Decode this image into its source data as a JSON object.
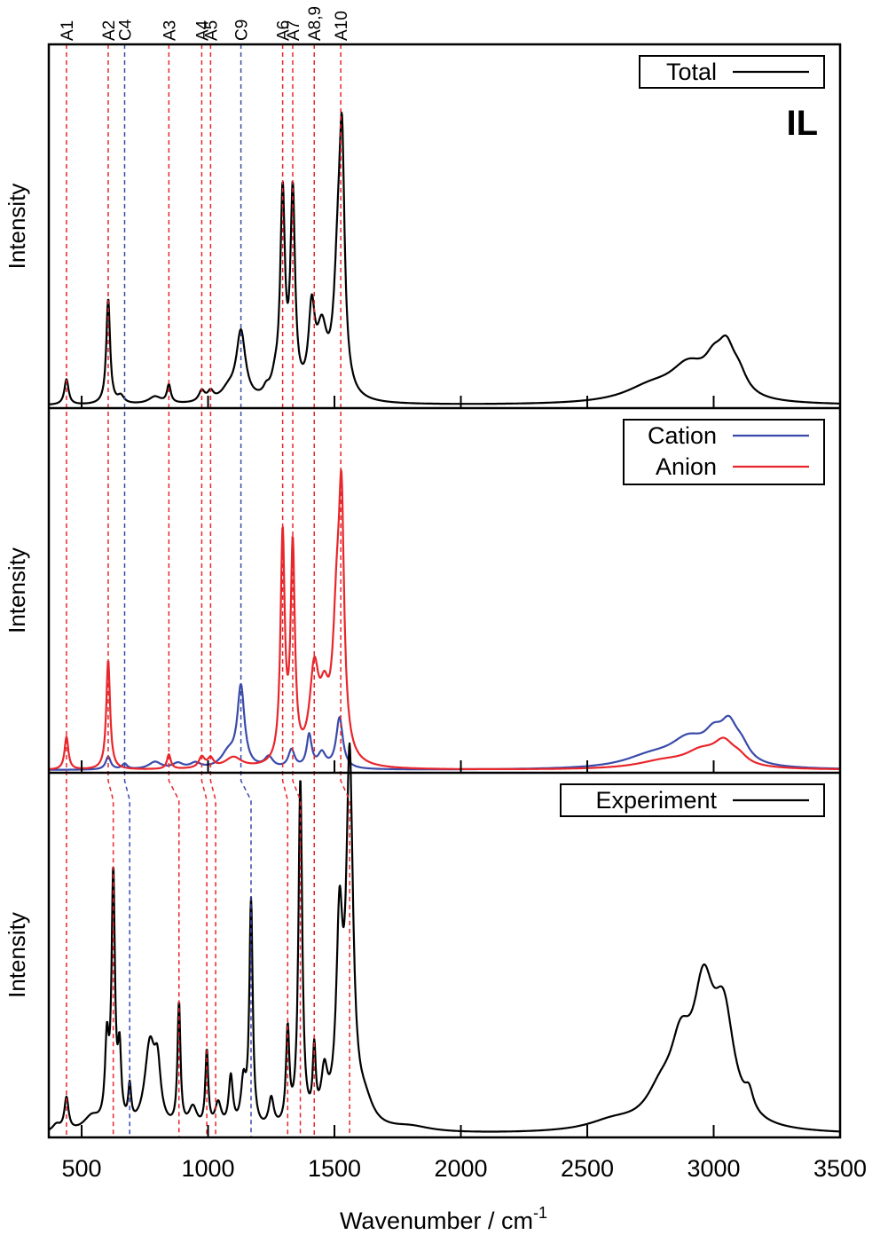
{
  "chart_data": {
    "type": "line",
    "xlabel": "Wavenumber / cm",
    "xlabel_sup": "-1",
    "xlim": [
      370,
      3500
    ],
    "xticks": [
      500,
      1000,
      1500,
      2000,
      2500,
      3000,
      3500
    ],
    "xtick_labels": [
      "500",
      "1000",
      "1500",
      "2000",
      "2500",
      "3000",
      "3500"
    ],
    "colors": {
      "total": "#000000",
      "cation": "#3a4aaa",
      "anion": "#e8262b",
      "experiment": "#000000"
    },
    "markers": [
      {
        "label": "A1",
        "x": 440,
        "color": "#e8262b",
        "x_exp": 440
      },
      {
        "label": "A2",
        "x": 605,
        "color": "#e8262b",
        "x_exp": 625
      },
      {
        "label": "C4",
        "x": 670,
        "color": "#3a4aaa",
        "x_exp": 690
      },
      {
        "label": "A3",
        "x": 845,
        "color": "#e8262b",
        "x_exp": 885
      },
      {
        "label": "A4",
        "x": 975,
        "color": "#e8262b",
        "x_exp": 995
      },
      {
        "label": "A5",
        "x": 1010,
        "color": "#e8262b",
        "x_exp": 1030
      },
      {
        "label": "C9",
        "x": 1130,
        "color": "#3a4aaa",
        "x_exp": 1170
      },
      {
        "label": "A6",
        "x": 1295,
        "color": "#e8262b",
        "x_exp": 1315
      },
      {
        "label": "A7",
        "x": 1335,
        "color": "#e8262b",
        "x_exp": 1365
      },
      {
        "label": "A8,9",
        "x": 1420,
        "color": "#e8262b",
        "x_exp": 1420
      },
      {
        "label": "A10",
        "x": 1525,
        "color": "#e8262b",
        "x_exp": 1560
      }
    ],
    "panels": [
      {
        "ylabel": "Intensity",
        "tag": "IL",
        "legend_position": "top-right",
        "series": [
          {
            "name": "Total",
            "color": "#000000",
            "peaks": [
              [
                440,
                10,
                0.07
              ],
              [
                605,
                9,
                0.29
              ],
              [
                655,
                15,
                0.02
              ],
              [
                790,
                30,
                0.02
              ],
              [
                845,
                9,
                0.05
              ],
              [
                975,
                14,
                0.03
              ],
              [
                1010,
                14,
                0.025
              ],
              [
                1080,
                35,
                0.03
              ],
              [
                1130,
                22,
                0.19
              ],
              [
                1230,
                14,
                0.02
              ],
              [
                1265,
                18,
                0.04
              ],
              [
                1295,
                11,
                0.55
              ],
              [
                1335,
                11,
                0.55
              ],
              [
                1410,
                15,
                0.22
              ],
              [
                1450,
                25,
                0.17
              ],
              [
                1515,
                20,
                0.35
              ],
              [
                1530,
                12,
                0.55
              ],
              [
                2750,
                130,
                0.04
              ],
              [
                2900,
                90,
                0.09
              ],
              [
                3000,
                45,
                0.07
              ],
              [
                3050,
                40,
                0.11
              ],
              [
                3100,
                40,
                0.05
              ]
            ]
          }
        ]
      },
      {
        "ylabel": "Intensity",
        "legend_position": "top-right",
        "series": [
          {
            "name": "Cation",
            "color": "#3a4aaa",
            "peaks": [
              [
                605,
                12,
                0.035
              ],
              [
                670,
                12,
                0.015
              ],
              [
                790,
                30,
                0.02
              ],
              [
                880,
                25,
                0.015
              ],
              [
                950,
                25,
                0.015
              ],
              [
                1080,
                35,
                0.04
              ],
              [
                1130,
                17,
                0.22
              ],
              [
                1240,
                20,
                0.03
              ],
              [
                1330,
                15,
                0.05
              ],
              [
                1400,
                12,
                0.09
              ],
              [
                1450,
                18,
                0.04
              ],
              [
                1520,
                16,
                0.14
              ],
              [
                2750,
                130,
                0.03
              ],
              [
                2900,
                90,
                0.07
              ],
              [
                3000,
                45,
                0.06
              ],
              [
                3060,
                40,
                0.09
              ],
              [
                3110,
                40,
                0.04
              ]
            ]
          },
          {
            "name": "Anion",
            "color": "#e8262b",
            "peaks": [
              [
                440,
                9,
                0.09
              ],
              [
                605,
                9,
                0.3
              ],
              [
                845,
                9,
                0.04
              ],
              [
                975,
                14,
                0.03
              ],
              [
                1010,
                14,
                0.025
              ],
              [
                1100,
                40,
                0.03
              ],
              [
                1295,
                10,
                0.62
              ],
              [
                1335,
                10,
                0.58
              ],
              [
                1420,
                22,
                0.24
              ],
              [
                1460,
                22,
                0.14
              ],
              [
                1510,
                20,
                0.38
              ],
              [
                1528,
                12,
                0.58
              ],
              [
                2800,
                130,
                0.02
              ],
              [
                2950,
                80,
                0.04
              ],
              [
                3040,
                50,
                0.06
              ],
              [
                3100,
                40,
                0.02
              ]
            ]
          }
        ]
      },
      {
        "ylabel": "Intensity",
        "legend_position": "top-right",
        "series": [
          {
            "name": "Experiment",
            "color": "#000000",
            "peaks": [
              [
                400,
                20,
                0.02
              ],
              [
                440,
                10,
                0.09
              ],
              [
                540,
                40,
                0.04
              ],
              [
                600,
                9,
                0.22
              ],
              [
                625,
                8,
                0.68
              ],
              [
                650,
                8,
                0.19
              ],
              [
                690,
                7,
                0.1
              ],
              [
                770,
                25,
                0.23
              ],
              [
                800,
                15,
                0.14
              ],
              [
                885,
                7,
                0.34
              ],
              [
                940,
                20,
                0.06
              ],
              [
                995,
                7,
                0.21
              ],
              [
                1040,
                15,
                0.07
              ],
              [
                1090,
                10,
                0.14
              ],
              [
                1140,
                12,
                0.12
              ],
              [
                1170,
                8,
                0.62
              ],
              [
                1250,
                12,
                0.08
              ],
              [
                1315,
                8,
                0.26
              ],
              [
                1365,
                9,
                0.95
              ],
              [
                1420,
                7,
                0.19
              ],
              [
                1460,
                15,
                0.13
              ],
              [
                1520,
                15,
                0.52
              ],
              [
                1560,
                16,
                0.98
              ],
              [
                1620,
                40,
                0.06
              ],
              [
                1800,
                100,
                0.015
              ],
              [
                2600,
                120,
                0.025
              ],
              [
                2790,
                70,
                0.08
              ],
              [
                2870,
                50,
                0.18
              ],
              [
                2960,
                50,
                0.33
              ],
              [
                3040,
                50,
                0.28
              ],
              [
                3140,
                20,
                0.05
              ]
            ]
          }
        ]
      }
    ]
  }
}
